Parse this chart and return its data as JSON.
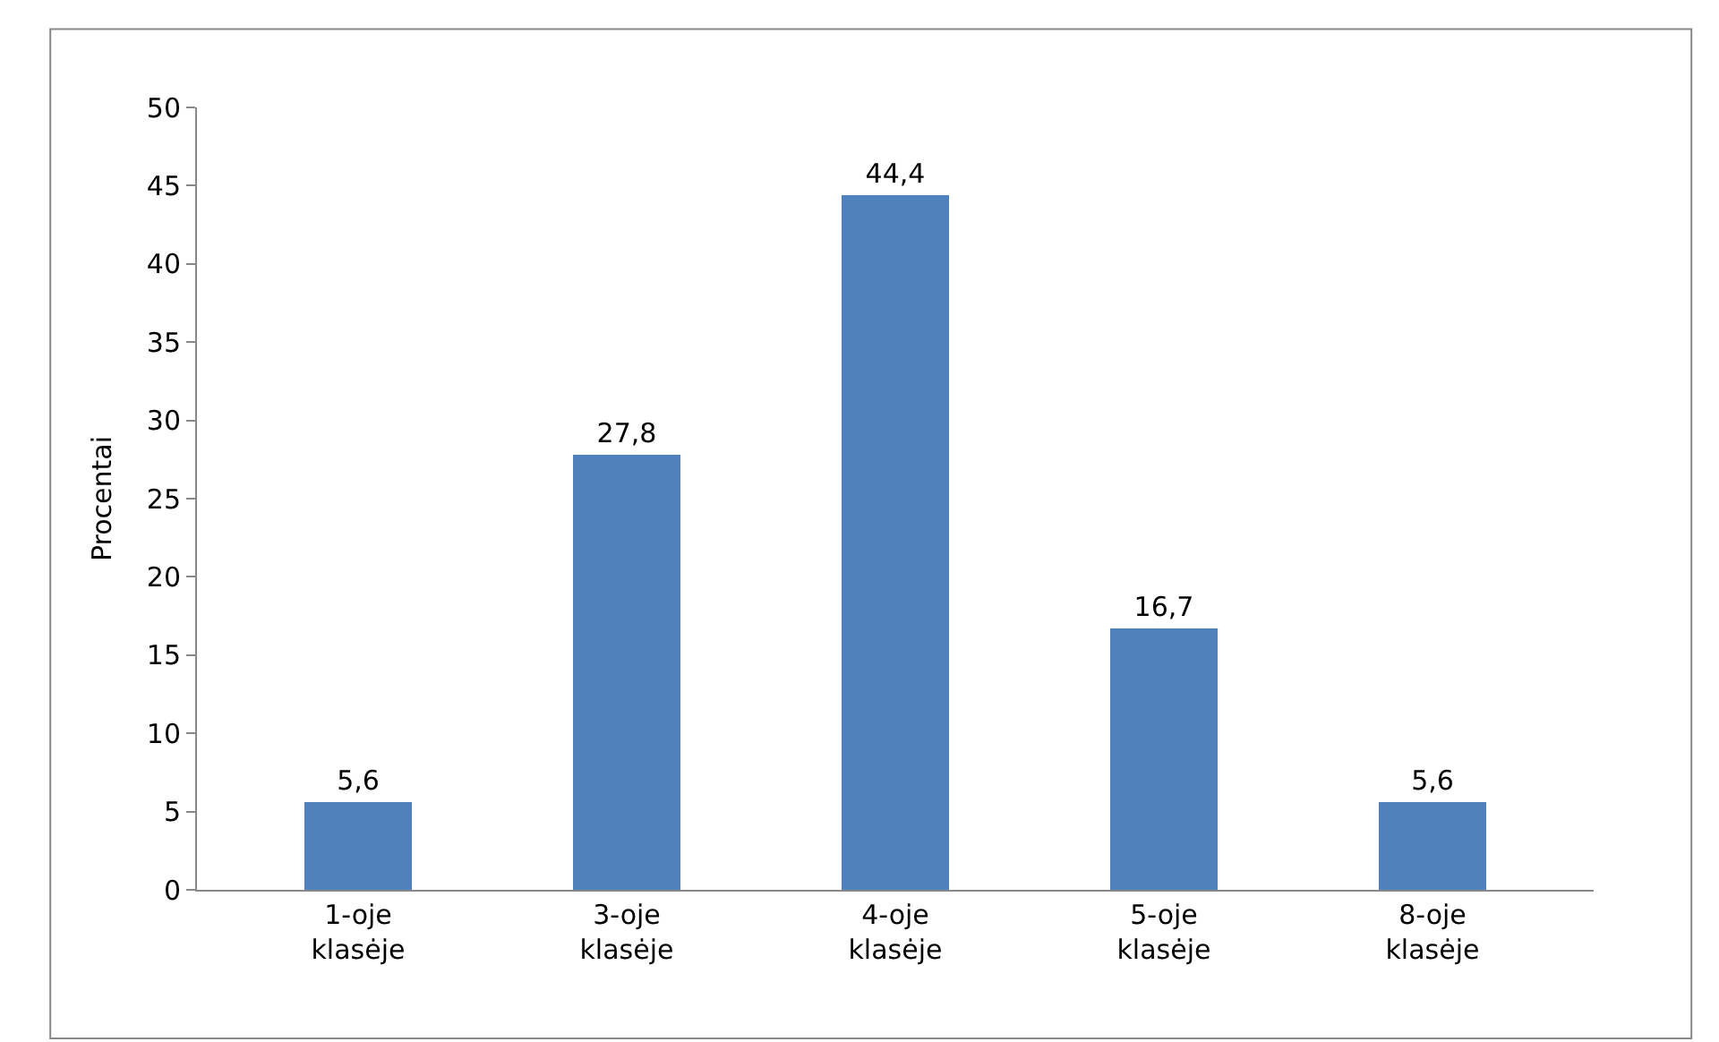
{
  "chart_data": {
    "type": "bar",
    "ylabel": "Procentai",
    "categories": [
      "1-oje klasėje",
      "3-oje klasėje",
      "4-oje klasėje",
      "5-oje klasėje",
      "8-oje klasėje"
    ],
    "values": [
      5.6,
      27.8,
      44.4,
      16.7,
      5.6
    ],
    "value_labels": [
      "5,6",
      "27,8",
      "44,4",
      "16,7",
      "5,6"
    ],
    "color": "#4f81bd",
    "ylim": [
      0,
      50
    ],
    "yticks": [
      0,
      5,
      10,
      15,
      20,
      25,
      30,
      35,
      40,
      45,
      50
    ]
  }
}
